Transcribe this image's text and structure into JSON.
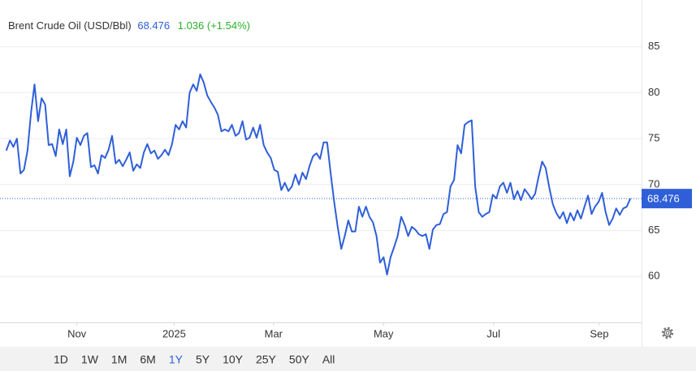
{
  "chart_data": {
    "type": "line",
    "title": "Brent Crude Oil (USD/Bbl)",
    "change": "1.036 (+1.54%)",
    "color": "#2f5fd8",
    "grid": true,
    "ylim": [
      55,
      90
    ],
    "yticks": [
      60,
      65,
      70,
      75,
      80,
      85
    ],
    "xlim": [
      -1.8,
      180.2
    ],
    "xticks": [
      {
        "value": 20,
        "label": "Nov"
      },
      {
        "value": 47.6,
        "label": "2025"
      },
      {
        "value": 75.8,
        "label": "Mar"
      },
      {
        "value": 107,
        "label": "May"
      },
      {
        "value": 138.2,
        "label": "Jul"
      },
      {
        "value": 168.2,
        "label": "Sep"
      }
    ],
    "range_buttons": [
      "1D",
      "1W",
      "1M",
      "6M",
      "1Y",
      "5Y",
      "10Y",
      "25Y",
      "50Y",
      "All"
    ],
    "active_range": "1Y",
    "values": [
      73.7,
      74.8,
      74.1,
      75.0,
      71.2,
      71.6,
      73.7,
      77.8,
      80.9,
      76.9,
      79.4,
      78.7,
      74.3,
      74.4,
      73.1,
      76.0,
      74.4,
      76.0,
      70.9,
      72.5,
      75.1,
      74.3,
      75.3,
      75.6,
      71.9,
      72.1,
      71.2,
      73.2,
      72.9,
      73.8,
      75.3,
      72.3,
      72.7,
      72.0,
      72.7,
      73.5,
      71.5,
      72.2,
      71.8,
      73.5,
      74.4,
      73.4,
      73.7,
      72.8,
      73.2,
      73.8,
      73.2,
      74.4,
      76.5,
      76.0,
      76.9,
      76.2,
      80.0,
      80.9,
      80.2,
      82.0,
      81.1,
      79.7,
      79.0,
      78.4,
      77.6,
      75.8,
      76.0,
      75.8,
      76.5,
      75.3,
      75.6,
      76.9,
      74.9,
      75.1,
      76.2,
      75.1,
      76.5,
      74.3,
      73.5,
      72.9,
      71.6,
      71.4,
      69.4,
      70.2,
      69.3,
      69.8,
      71.1,
      70.0,
      71.3,
      70.6,
      72.0,
      73.1,
      73.4,
      72.8,
      74.6,
      74.6,
      71.2,
      68.1,
      65.4,
      63.0,
      64.4,
      66.1,
      64.9,
      64.9,
      67.6,
      66.5,
      67.6,
      66.5,
      65.9,
      64.4,
      61.5,
      62.1,
      60.2,
      62.1,
      63.2,
      64.4,
      66.5,
      65.6,
      64.4,
      65.4,
      65.1,
      64.6,
      64.4,
      64.6,
      63.0,
      65.1,
      65.6,
      65.7,
      66.8,
      67.0,
      69.8,
      70.5,
      74.3,
      73.4,
      76.5,
      76.8,
      77.0,
      69.8,
      67.0,
      66.5,
      66.8,
      67.0,
      68.9,
      68.5,
      69.8,
      70.2,
      69.1,
      70.2,
      68.4,
      69.3,
      68.3,
      69.5,
      69.0,
      68.4,
      69.0,
      70.9,
      72.5,
      71.8,
      69.7,
      67.9,
      66.9,
      66.3,
      67.0,
      65.8,
      66.9,
      66.1,
      67.2,
      66.3,
      67.6,
      68.8,
      66.8,
      67.6,
      68.1,
      69.1,
      67.0,
      65.6,
      66.3,
      67.4,
      66.7,
      67.4,
      67.6,
      68.476
    ]
  }
}
